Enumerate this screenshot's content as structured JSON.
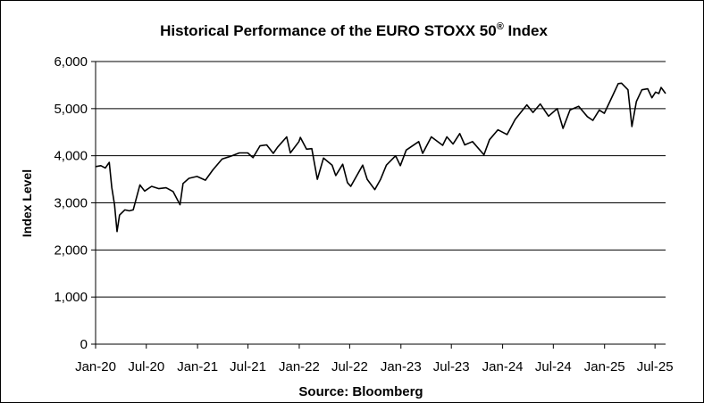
{
  "chart_data": {
    "type": "line",
    "title_main": "Historical Performance of the EURO STOXX 50",
    "title_sup": "®",
    "title_end": " Index",
    "ylabel": "Index Level",
    "source": "Source: Bloomberg",
    "ylim": [
      0,
      6000
    ],
    "yticks": [
      0,
      1000,
      2000,
      3000,
      4000,
      5000,
      6000
    ],
    "ytick_labels": [
      "0",
      "1,000",
      "2,000",
      "3,000",
      "4,000",
      "5,000",
      "6,000"
    ],
    "xlim": [
      "2020-01-01",
      "2025-08-08"
    ],
    "xtick_dates": [
      "2020-01-01",
      "2020-07-01",
      "2021-01-01",
      "2021-07-01",
      "2022-01-01",
      "2022-07-01",
      "2023-01-01",
      "2023-07-01",
      "2024-01-01",
      "2024-07-01",
      "2025-01-01",
      "2025-07-01"
    ],
    "xtick_labels": [
      "Jan-20",
      "Jul-20",
      "Jan-21",
      "Jul-21",
      "Jan-22",
      "Jul-22",
      "Jan-23",
      "Jul-23",
      "Jan-24",
      "Jul-24",
      "Jan-25",
      "Jul-25"
    ],
    "grid": "horizontal",
    "line_color": "#000000",
    "series": [
      {
        "points": [
          [
            "2020-01-02",
            3770
          ],
          [
            "2020-01-20",
            3790
          ],
          [
            "2020-02-05",
            3740
          ],
          [
            "2020-02-19",
            3860
          ],
          [
            "2020-02-28",
            3330
          ],
          [
            "2020-03-09",
            2960
          ],
          [
            "2020-03-18",
            2390
          ],
          [
            "2020-03-27",
            2740
          ],
          [
            "2020-04-15",
            2850
          ],
          [
            "2020-05-01",
            2830
          ],
          [
            "2020-05-15",
            2850
          ],
          [
            "2020-06-08",
            3380
          ],
          [
            "2020-06-25",
            3250
          ],
          [
            "2020-07-20",
            3350
          ],
          [
            "2020-08-15",
            3300
          ],
          [
            "2020-09-10",
            3320
          ],
          [
            "2020-10-05",
            3240
          ],
          [
            "2020-10-30",
            2960
          ],
          [
            "2020-11-10",
            3410
          ],
          [
            "2020-12-01",
            3520
          ],
          [
            "2020-12-30",
            3560
          ],
          [
            "2021-01-29",
            3480
          ],
          [
            "2021-02-25",
            3700
          ],
          [
            "2021-03-30",
            3930
          ],
          [
            "2021-04-30",
            3990
          ],
          [
            "2021-05-31",
            4060
          ],
          [
            "2021-06-30",
            4060
          ],
          [
            "2021-07-19",
            3960
          ],
          [
            "2021-08-13",
            4210
          ],
          [
            "2021-09-06",
            4230
          ],
          [
            "2021-09-30",
            4050
          ],
          [
            "2021-10-15",
            4180
          ],
          [
            "2021-11-17",
            4400
          ],
          [
            "2021-11-30",
            4060
          ],
          [
            "2021-12-31",
            4300
          ],
          [
            "2022-01-05",
            4390
          ],
          [
            "2022-01-27",
            4140
          ],
          [
            "2022-02-15",
            4150
          ],
          [
            "2022-03-07",
            3500
          ],
          [
            "2022-03-29",
            3950
          ],
          [
            "2022-04-29",
            3800
          ],
          [
            "2022-05-12",
            3580
          ],
          [
            "2022-06-06",
            3820
          ],
          [
            "2022-06-23",
            3430
          ],
          [
            "2022-07-05",
            3350
          ],
          [
            "2022-08-17",
            3800
          ],
          [
            "2022-09-02",
            3500
          ],
          [
            "2022-09-29",
            3280
          ],
          [
            "2022-10-20",
            3500
          ],
          [
            "2022-11-10",
            3800
          ],
          [
            "2022-12-13",
            4000
          ],
          [
            "2022-12-30",
            3790
          ],
          [
            "2023-01-20",
            4120
          ],
          [
            "2023-03-06",
            4300
          ],
          [
            "2023-03-20",
            4050
          ],
          [
            "2023-04-20",
            4400
          ],
          [
            "2023-05-31",
            4220
          ],
          [
            "2023-06-15",
            4400
          ],
          [
            "2023-07-07",
            4250
          ],
          [
            "2023-07-31",
            4470
          ],
          [
            "2023-08-18",
            4230
          ],
          [
            "2023-09-15",
            4300
          ],
          [
            "2023-10-26",
            4020
          ],
          [
            "2023-11-15",
            4340
          ],
          [
            "2023-12-15",
            4550
          ],
          [
            "2024-01-17",
            4450
          ],
          [
            "2024-02-15",
            4770
          ],
          [
            "2024-03-28",
            5080
          ],
          [
            "2024-04-19",
            4920
          ],
          [
            "2024-05-15",
            5100
          ],
          [
            "2024-06-14",
            4840
          ],
          [
            "2024-07-15",
            5000
          ],
          [
            "2024-08-05",
            4580
          ],
          [
            "2024-08-30",
            4970
          ],
          [
            "2024-09-30",
            5050
          ],
          [
            "2024-10-31",
            4830
          ],
          [
            "2024-11-20",
            4750
          ],
          [
            "2024-12-13",
            4970
          ],
          [
            "2024-12-31",
            4900
          ],
          [
            "2025-01-31",
            5290
          ],
          [
            "2025-02-19",
            5530
          ],
          [
            "2025-03-03",
            5540
          ],
          [
            "2025-03-26",
            5400
          ],
          [
            "2025-04-09",
            4620
          ],
          [
            "2025-04-25",
            5150
          ],
          [
            "2025-05-15",
            5400
          ],
          [
            "2025-06-05",
            5420
          ],
          [
            "2025-06-20",
            5230
          ],
          [
            "2025-07-03",
            5350
          ],
          [
            "2025-07-15",
            5320
          ],
          [
            "2025-07-23",
            5450
          ],
          [
            "2025-08-08",
            5320
          ]
        ]
      }
    ]
  }
}
